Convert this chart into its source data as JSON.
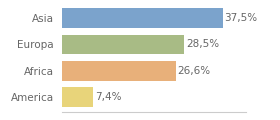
{
  "categories": [
    "Asia",
    "Europa",
    "Africa",
    "America"
  ],
  "values": [
    37.5,
    28.5,
    26.6,
    7.4
  ],
  "labels": [
    "37,5%",
    "28,5%",
    "26,6%",
    "7,4%"
  ],
  "bar_colors": [
    "#7ba3cc",
    "#a8bb85",
    "#e8b07a",
    "#e8d47a"
  ],
  "background_color": "#ffffff",
  "xlim": [
    0,
    43
  ],
  "bar_height": 0.75,
  "label_fontsize": 7.5,
  "tick_fontsize": 7.5,
  "label_color": "#666666",
  "tick_color": "#666666"
}
